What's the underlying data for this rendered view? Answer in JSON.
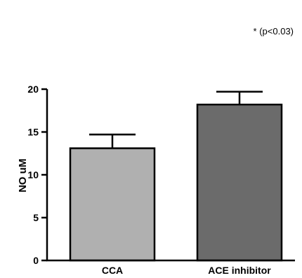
{
  "chart_data": {
    "type": "bar",
    "categories": [
      "CCA",
      "ACE inhibitor"
    ],
    "values": [
      13.1,
      18.2
    ],
    "errors": [
      1.6,
      1.5
    ],
    "ylabel": "NO uM",
    "ylim": [
      0,
      20
    ],
    "yticks": [
      0,
      5,
      10,
      15,
      20
    ],
    "bar_colors": [
      "#b0b0b0",
      "#6b6b6b"
    ],
    "grid": false,
    "annotation": "* (p<0.03)"
  }
}
